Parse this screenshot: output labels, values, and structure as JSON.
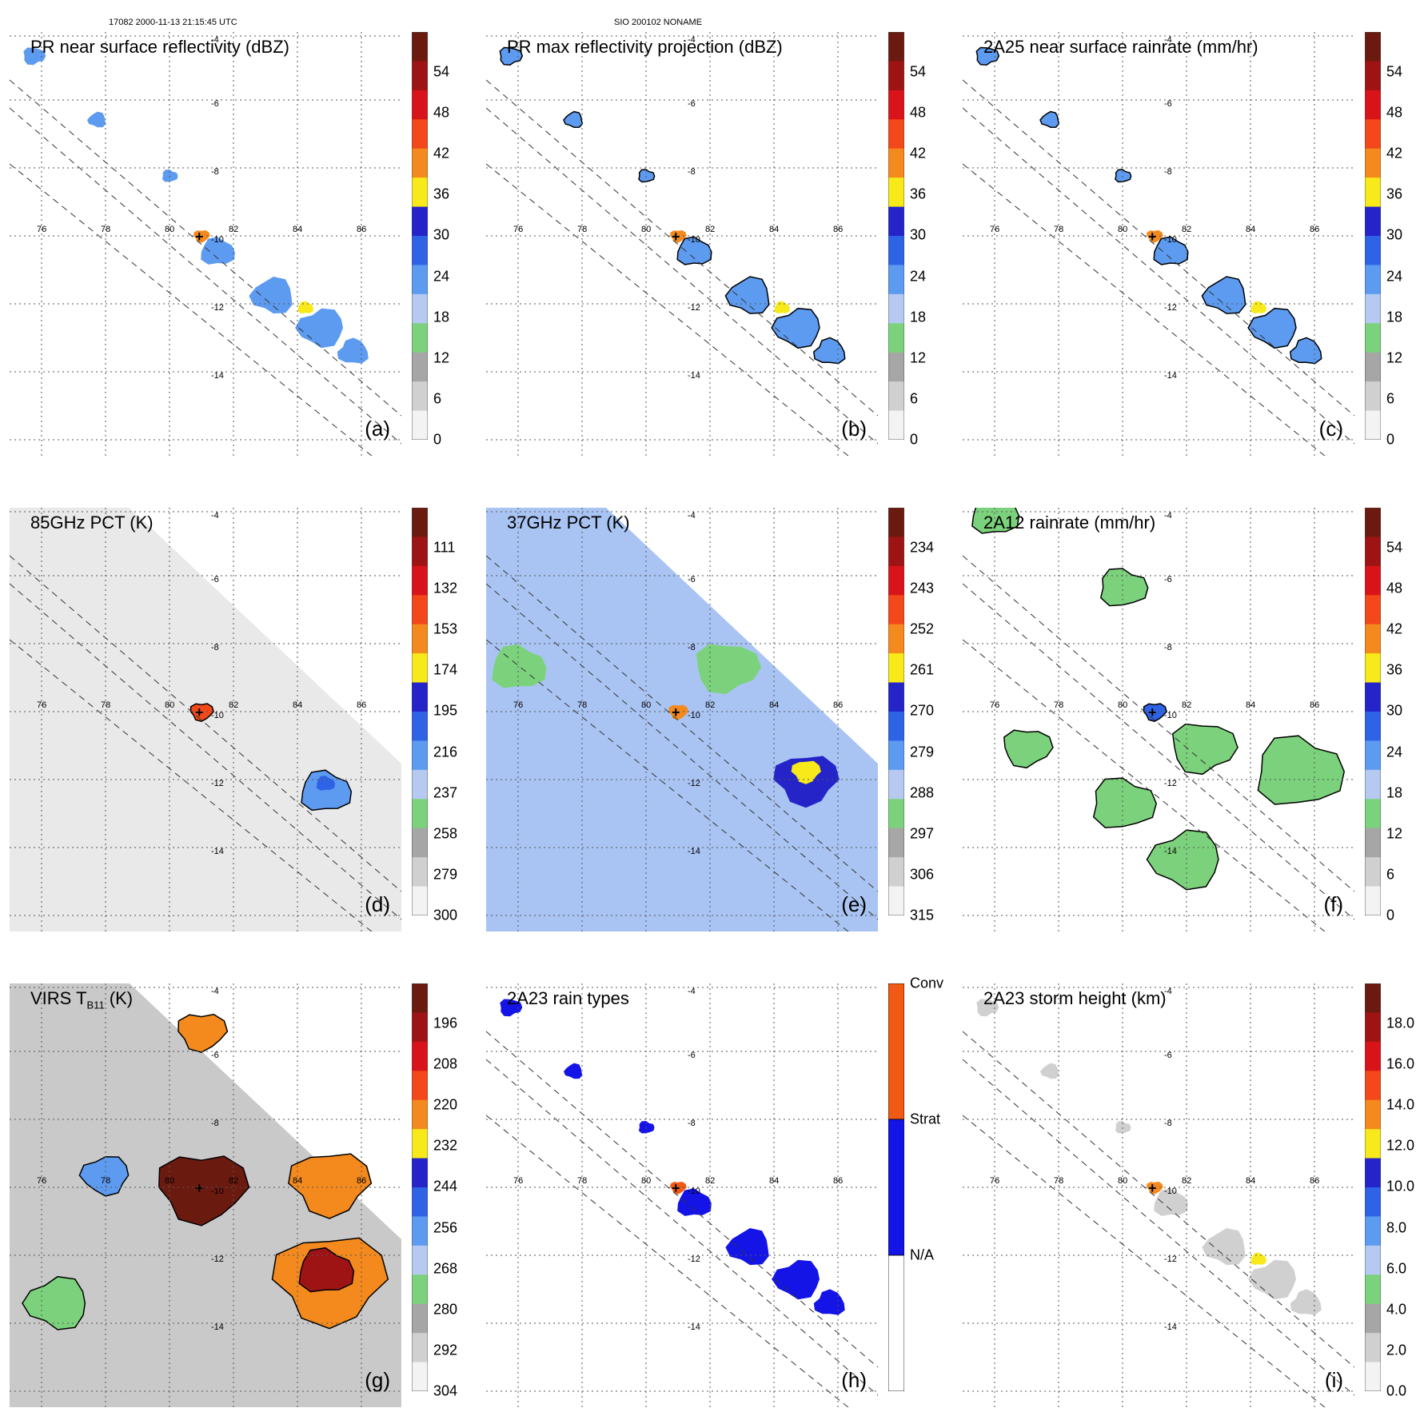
{
  "header": {
    "left": "17082 2000-11-13 21:15:45 UTC",
    "center": "SIO 200102 NONAME"
  },
  "map": {
    "lon_labels": [
      "76",
      "78",
      "80",
      "82",
      "84",
      "86"
    ],
    "lat_labels": [
      "-4",
      "-6",
      "-8",
      "-10",
      "-12",
      "-14"
    ]
  },
  "panels": [
    {
      "id": "a",
      "title": "PR near surface reflectivity (dBZ)",
      "label": "(a)",
      "ticks": [
        "54",
        "48",
        "42",
        "36",
        "30",
        "24",
        "18",
        "12",
        "6",
        "0"
      ],
      "field": "swath"
    },
    {
      "id": "b",
      "title": "PR max reflectivity projection (dBZ)",
      "label": "(b)",
      "ticks": [
        "54",
        "48",
        "42",
        "36",
        "30",
        "24",
        "18",
        "12",
        "6",
        "0"
      ],
      "field": "swath"
    },
    {
      "id": "c",
      "title": "2A25 near surface rainrate (mm/hr)",
      "label": "(c)",
      "ticks": [
        "54",
        "48",
        "42",
        "36",
        "30",
        "24",
        "18",
        "12",
        "6",
        "0"
      ],
      "field": "swath"
    },
    {
      "id": "d",
      "title": "85GHz PCT (K)",
      "label": "(d)",
      "ticks": [
        "111",
        "132",
        "153",
        "174",
        "195",
        "216",
        "237",
        "258",
        "279",
        "300"
      ],
      "field": "wide-gray"
    },
    {
      "id": "e",
      "title": "37GHz PCT (K)",
      "label": "(e)",
      "ticks": [
        "234",
        "243",
        "252",
        "261",
        "270",
        "279",
        "288",
        "297",
        "306",
        "315"
      ],
      "field": "wide-blue"
    },
    {
      "id": "f",
      "title": "2A12 rainrate (mm/hr)",
      "label": "(f)",
      "ticks": [
        "54",
        "48",
        "42",
        "36",
        "30",
        "24",
        "18",
        "12",
        "6",
        "0"
      ],
      "field": "wide-white"
    },
    {
      "id": "g",
      "title": "VIRS T",
      "title_sub": "B11",
      "title_suffix": " (K)",
      "label": "(g)",
      "ticks": [
        "196",
        "208",
        "220",
        "232",
        "244",
        "256",
        "268",
        "280",
        "292",
        "304"
      ],
      "field": "wide-ir"
    },
    {
      "id": "h",
      "title": "2A23 rain types",
      "label": "(h)",
      "ticks": [
        "Conv",
        "Strat",
        "N/A"
      ],
      "field": "swath"
    },
    {
      "id": "i",
      "title": "2A23 storm height (km)",
      "label": "(i)",
      "ticks": [
        "18.0",
        "16.0",
        "14.0",
        "12.0",
        "10.0",
        "8.0",
        "6.0",
        "4.0",
        "2.0",
        "0.0"
      ],
      "field": "swath"
    }
  ],
  "colors": {
    "scale": [
      "#6b1a10",
      "#9e1414",
      "#d8141a",
      "#f2481a",
      "#f48a1e",
      "#f7e91a",
      "#2424c8",
      "#2f63e6",
      "#5d9bf0",
      "#b5c9f1",
      "#7cd27c",
      "#a6a6a6",
      "#d0d0d0",
      "#f3f3f3"
    ],
    "types": [
      "#f05a14",
      "#1414e6",
      "#ffffff"
    ]
  }
}
